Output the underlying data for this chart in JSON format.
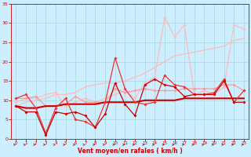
{
  "x": [
    0,
    1,
    2,
    3,
    4,
    5,
    6,
    7,
    8,
    9,
    10,
    11,
    12,
    13,
    14,
    15,
    16,
    17,
    18,
    19,
    20,
    21,
    22,
    23
  ],
  "line_dark_red_markers": [
    8.5,
    7.0,
    7.0,
    1.0,
    7.0,
    6.5,
    7.0,
    6.0,
    3.0,
    6.5,
    14.5,
    9.0,
    6.0,
    14.0,
    15.5,
    14.0,
    13.5,
    11.0,
    11.5,
    11.5,
    11.5,
    15.0,
    9.5,
    9.5
  ],
  "line_med_red_markers": [
    10.5,
    11.5,
    8.0,
    1.5,
    8.0,
    10.5,
    5.0,
    4.5,
    3.0,
    9.5,
    21.0,
    13.0,
    9.5,
    9.0,
    9.5,
    16.5,
    14.0,
    13.5,
    11.5,
    11.5,
    12.0,
    15.5,
    9.5,
    12.5
  ],
  "line_dark_trend": [
    8.5,
    8.0,
    8.0,
    8.5,
    8.5,
    9.0,
    9.0,
    9.0,
    9.0,
    9.5,
    9.5,
    9.5,
    9.5,
    10.0,
    10.0,
    10.0,
    10.0,
    10.5,
    10.5,
    10.5,
    10.5,
    10.5,
    10.5,
    10.5
  ],
  "line_light_trend": [
    10.5,
    10.5,
    11.0,
    8.5,
    8.5,
    9.0,
    11.0,
    9.5,
    9.5,
    9.5,
    13.0,
    12.0,
    12.5,
    13.0,
    12.5,
    12.5,
    12.5,
    13.0,
    13.0,
    13.0,
    13.0,
    14.0,
    14.0,
    12.5
  ],
  "line_light_rising": [
    8.5,
    9.5,
    10.0,
    10.5,
    11.5,
    11.5,
    12.0,
    13.5,
    14.0,
    14.5,
    14.5,
    15.0,
    16.0,
    17.0,
    18.5,
    20.0,
    21.5,
    22.0,
    22.5,
    23.0,
    23.5,
    24.0,
    25.5,
    26.0
  ],
  "line_light_markers": [
    9.5,
    10.5,
    10.5,
    11.5,
    12.0,
    8.5,
    9.5,
    10.5,
    9.5,
    10.5,
    11.5,
    12.5,
    10.5,
    14.5,
    16.0,
    31.5,
    26.5,
    29.5,
    11.5,
    12.5,
    11.5,
    13.5,
    29.5,
    28.5
  ],
  "background_color": "#cceeff",
  "grid_color": "#aadddd",
  "color_dark_red": "#cc0000",
  "color_med_red": "#ee3333",
  "color_light_red": "#ff9999",
  "color_pale_red": "#ffbbbb",
  "xlabel": "Vent moyen/en rafales ( km/h )",
  "ylim": [
    0,
    35
  ],
  "xlim": [
    -0.5,
    23.5
  ],
  "yticks": [
    0,
    5,
    10,
    15,
    20,
    25,
    30,
    35
  ],
  "xticks": [
    0,
    1,
    2,
    3,
    4,
    5,
    6,
    7,
    8,
    9,
    10,
    11,
    12,
    13,
    14,
    15,
    16,
    17,
    18,
    19,
    20,
    21,
    22,
    23
  ]
}
